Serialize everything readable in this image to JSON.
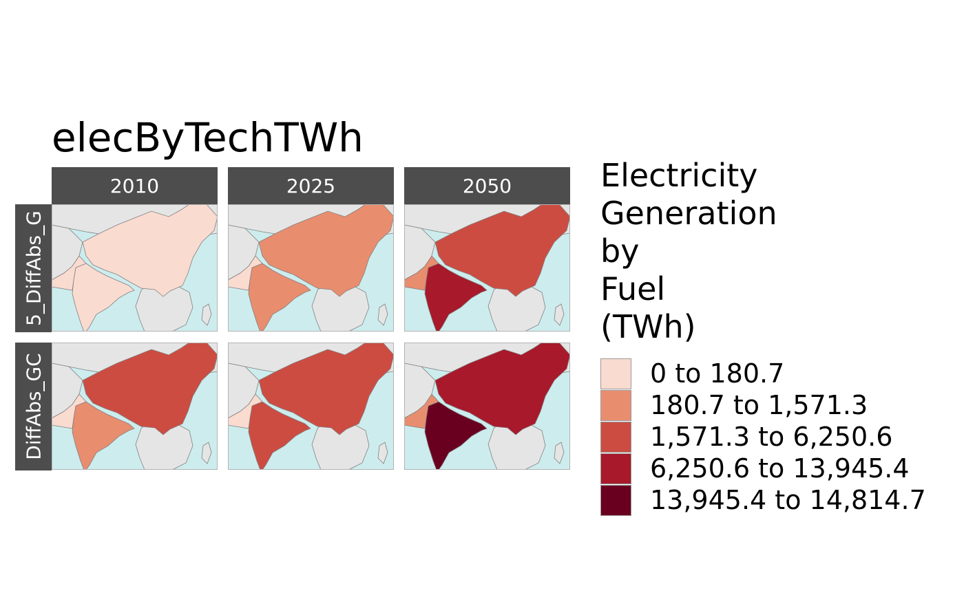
{
  "title": "elecByTechTWh",
  "columns": [
    "2010",
    "2025",
    "2050"
  ],
  "rows": [
    "5_DiffAbs_G",
    "DiffAbs_GC"
  ],
  "legend": {
    "title_lines": [
      "Electricity",
      "Generation",
      "by",
      "Fuel",
      "(TWh)"
    ],
    "items": [
      {
        "label": "0 to 180.7",
        "color": "#fadbd0"
      },
      {
        "label": "180.7 to 1,571.3",
        "color": "#e98d6f"
      },
      {
        "label": "1,571.3 to 6,250.6",
        "color": "#cc4c42"
      },
      {
        "label": "6,250.6 to 13,945.4",
        "color": "#a8192b"
      },
      {
        "label": "13,945.4 to 14,814.7",
        "color": "#6a0020"
      }
    ]
  },
  "colors": {
    "ocean": "#cdeced",
    "land": "#e5e5e5",
    "border": "#808080",
    "strip": "#4d4d4d"
  },
  "regions": [
    "China",
    "India",
    "Pakistan"
  ],
  "panels": [
    {
      "row": 0,
      "col": 0,
      "china": 0,
      "india": 0,
      "pakistan": 0
    },
    {
      "row": 0,
      "col": 1,
      "china": 1,
      "india": 1,
      "pakistan": 0
    },
    {
      "row": 0,
      "col": 2,
      "china": 2,
      "india": 3,
      "pakistan": 1
    },
    {
      "row": 1,
      "col": 0,
      "china": 2,
      "india": 1,
      "pakistan": 0
    },
    {
      "row": 1,
      "col": 1,
      "china": 2,
      "india": 2,
      "pakistan": 0
    },
    {
      "row": 1,
      "col": 2,
      "china": 3,
      "india": 4,
      "pakistan": 1
    }
  ]
}
